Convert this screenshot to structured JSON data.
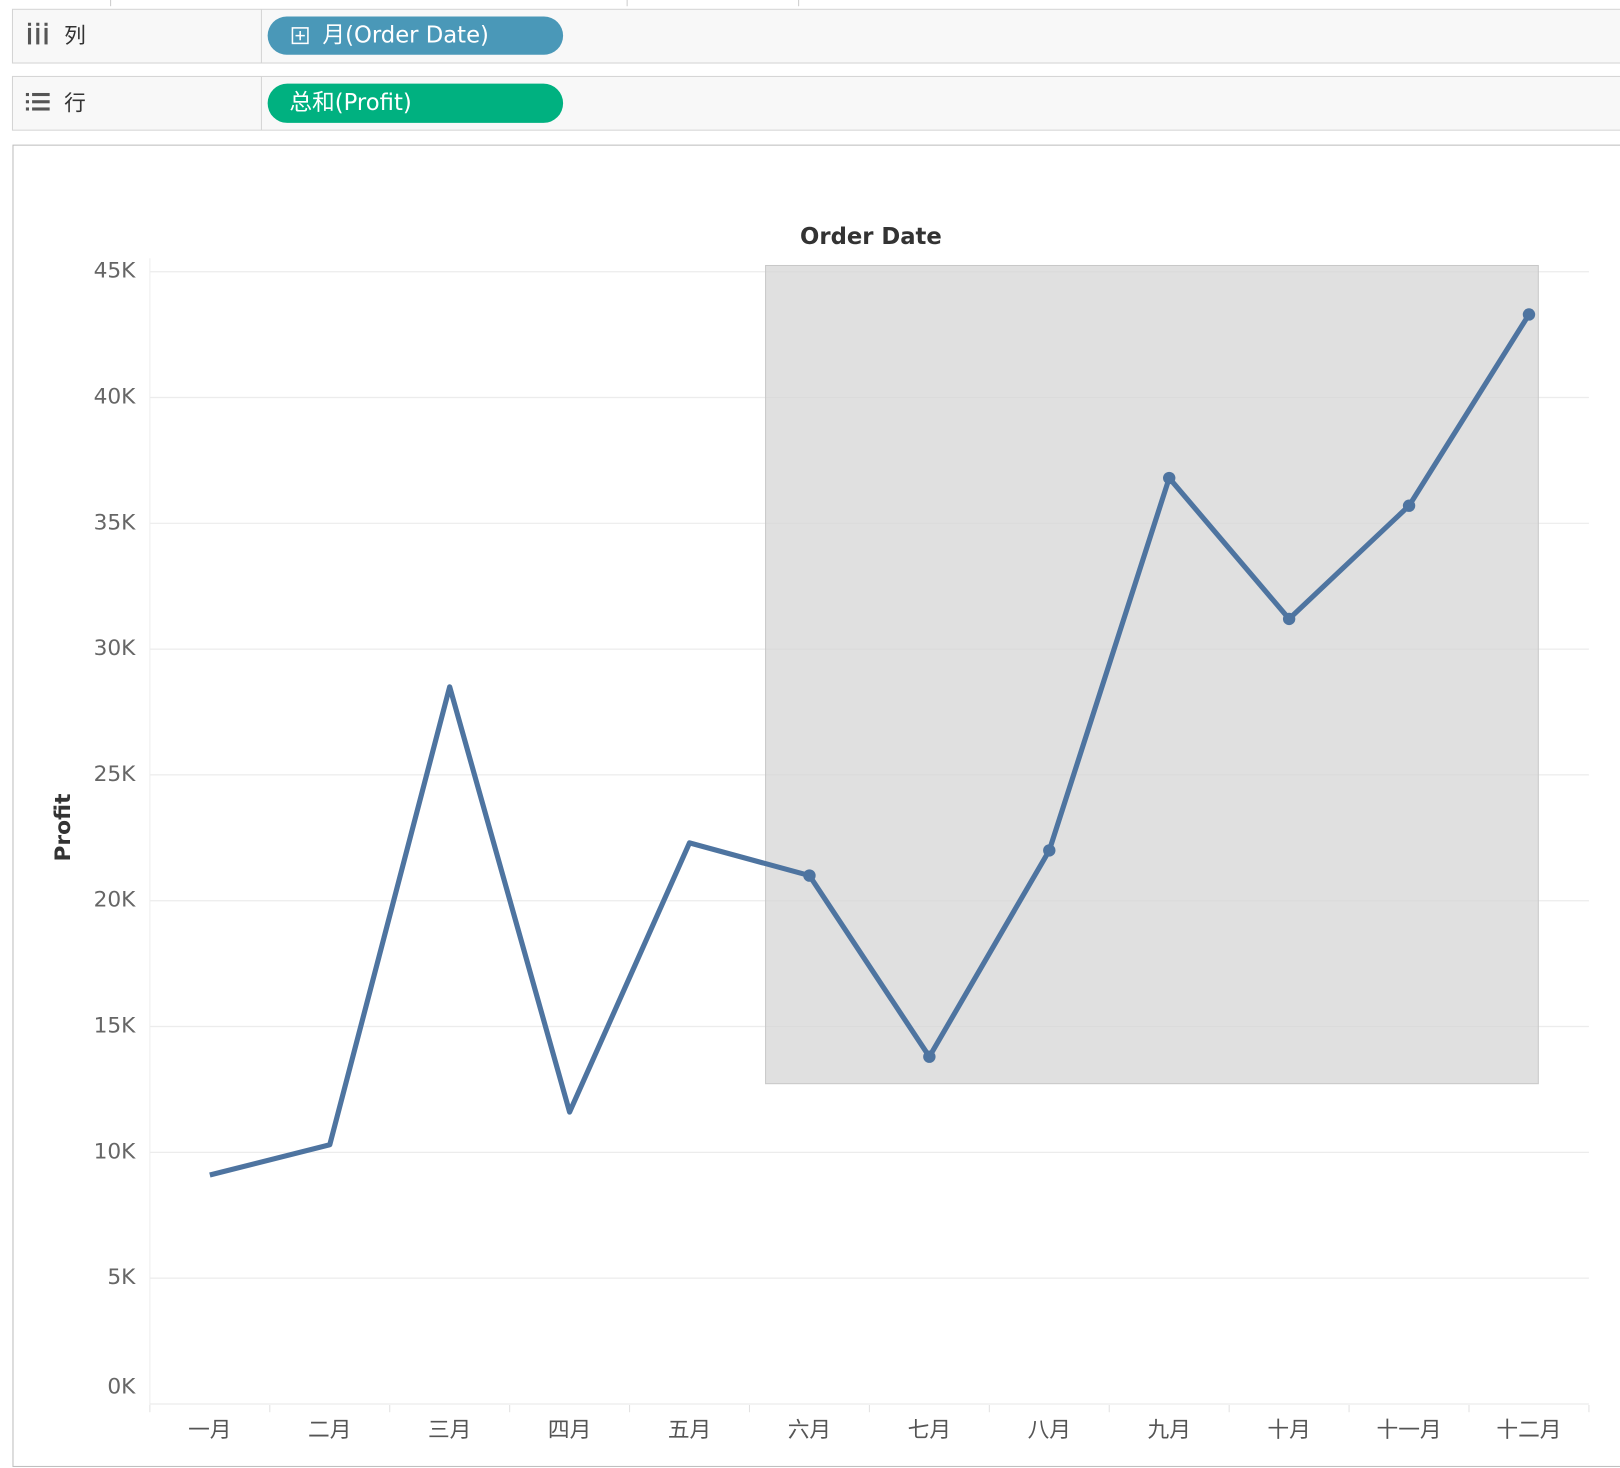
{
  "shelves": {
    "columns": {
      "label": "列",
      "pill": "月(Order Date)"
    },
    "rows": {
      "label": "行",
      "pill": "总和(Profit)"
    }
  },
  "chart_data": {
    "type": "line",
    "header": "Order Date",
    "y_label": "Profit",
    "categories": [
      "一月",
      "二月",
      "三月",
      "四月",
      "五月",
      "六月",
      "七月",
      "八月",
      "九月",
      "十月",
      "十一月",
      "十二月"
    ],
    "values": [
      9100,
      10300,
      28500,
      11600,
      22300,
      21000,
      13800,
      22000,
      36800,
      31200,
      35700,
      43300
    ],
    "color": "#4e74a0",
    "ylim": [
      0,
      45000
    ],
    "yticks": [
      {
        "value": 0,
        "label": "0K"
      },
      {
        "value": 5000,
        "label": "5K"
      },
      {
        "value": 10000,
        "label": "10K"
      },
      {
        "value": 15000,
        "label": "15K"
      },
      {
        "value": 20000,
        "label": "20K"
      },
      {
        "value": 25000,
        "label": "25K"
      },
      {
        "value": 30000,
        "label": "30K"
      },
      {
        "value": 35000,
        "label": "35K"
      },
      {
        "value": 40000,
        "label": "40K"
      },
      {
        "value": 45000,
        "label": "45K"
      }
    ],
    "grid": true
  }
}
